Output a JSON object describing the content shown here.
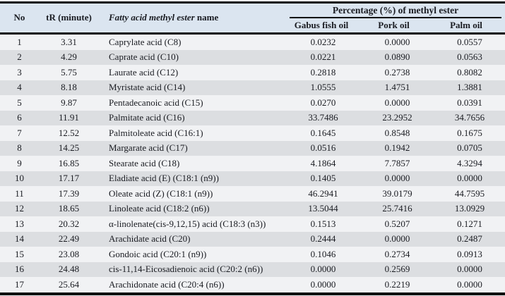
{
  "colors": {
    "header_bg": "#dbe5f0",
    "row_odd": "#f1f2f4",
    "row_even": "#dcdee1",
    "rule": "#0d0d0d",
    "text": "#1a1c22"
  },
  "table": {
    "columns": {
      "no": "No",
      "tr": "tR (minute)",
      "name_italic": "Fatty acid methyl ester",
      "name_rest": " name",
      "group": "Percentage (%) of methyl ester",
      "oils": [
        "Gabus fish oil",
        "Pork oil",
        "Palm oil"
      ]
    },
    "rows": [
      {
        "no": "1",
        "tr": "3.31",
        "name": "Caprylate acid (C8)",
        "gabus": "0.0232",
        "pork": "0.0000",
        "palm": "0.0557"
      },
      {
        "no": "2",
        "tr": "4.29",
        "name": "Caprate acid (C10)",
        "gabus": "0.0221",
        "pork": "0.0890",
        "palm": "0.0563"
      },
      {
        "no": "3",
        "tr": "5.75",
        "name": "Laurate acid (C12)",
        "gabus": "0.2818",
        "pork": "0.2738",
        "palm": "0.8082"
      },
      {
        "no": "4",
        "tr": "8.18",
        "name": "Myristate acid (C14)",
        "gabus": "1.0555",
        "pork": "1.4751",
        "palm": "1.3881"
      },
      {
        "no": "5",
        "tr": "9.87",
        "name": "Pentadecanoic acid (C15)",
        "gabus": "0.0270",
        "pork": "0.0000",
        "palm": "0.0391"
      },
      {
        "no": "6",
        "tr": "11.91",
        "name": "Palmitate acid (C16)",
        "gabus": "33.7486",
        "pork": "23.2952",
        "palm": "34.7656"
      },
      {
        "no": "7",
        "tr": "12.52",
        "name": "Palmitoleate acid (C16:1)",
        "gabus": "0.1645",
        "pork": "0.8548",
        "palm": "0.1675"
      },
      {
        "no": "8",
        "tr": "14.25",
        "name": "Margarate acid (C17)",
        "gabus": "0.0516",
        "pork": "0.1942",
        "palm": "0.0705"
      },
      {
        "no": "9",
        "tr": "16.85",
        "name": "Stearate acid (C18)",
        "gabus": "4.1864",
        "pork": "7.7857",
        "palm": "4.3294"
      },
      {
        "no": "10",
        "tr": "17.17",
        "name": "Eladiate acid (E) (C18:1 (n9))",
        "gabus": "0.1405",
        "pork": "0.0000",
        "palm": "0.0000"
      },
      {
        "no": "11",
        "tr": "17.39",
        "name": "Oleate acid (Z) (C18:1 (n9))",
        "gabus": "46.2941",
        "pork": "39.0179",
        "palm": "44.7595"
      },
      {
        "no": "12",
        "tr": "18.65",
        "name": "Linoleate acid (C18:2 (n6))",
        "gabus": "13.5044",
        "pork": "25.7416",
        "palm": "13.0929"
      },
      {
        "no": "13",
        "tr": "20.32",
        "name": "α-linolenate(cis-9,12,15) acid (C18:3 (n3))",
        "gabus": "0.1513",
        "pork": "0.5207",
        "palm": "0.1271"
      },
      {
        "no": "14",
        "tr": "22.49",
        "name": "Arachidate acid (C20)",
        "gabus": "0.2444",
        "pork": "0.0000",
        "palm": "0.2487"
      },
      {
        "no": "15",
        "tr": "23.08",
        "name": "Gondoic acid (C20:1 (n9))",
        "gabus": "0.1046",
        "pork": "0.2734",
        "palm": "0.0913"
      },
      {
        "no": "16",
        "tr": "24.48",
        "name": "cis-11,14-Eicosadienoic acid (C20:2 (n6))",
        "gabus": "0.0000",
        "pork": "0.2569",
        "palm": "0.0000"
      },
      {
        "no": "17",
        "tr": "25.64",
        "name": "Arachidonate acid (C20:4 (n6))",
        "gabus": "0.0000",
        "pork": "0.2219",
        "palm": "0.0000"
      }
    ]
  }
}
